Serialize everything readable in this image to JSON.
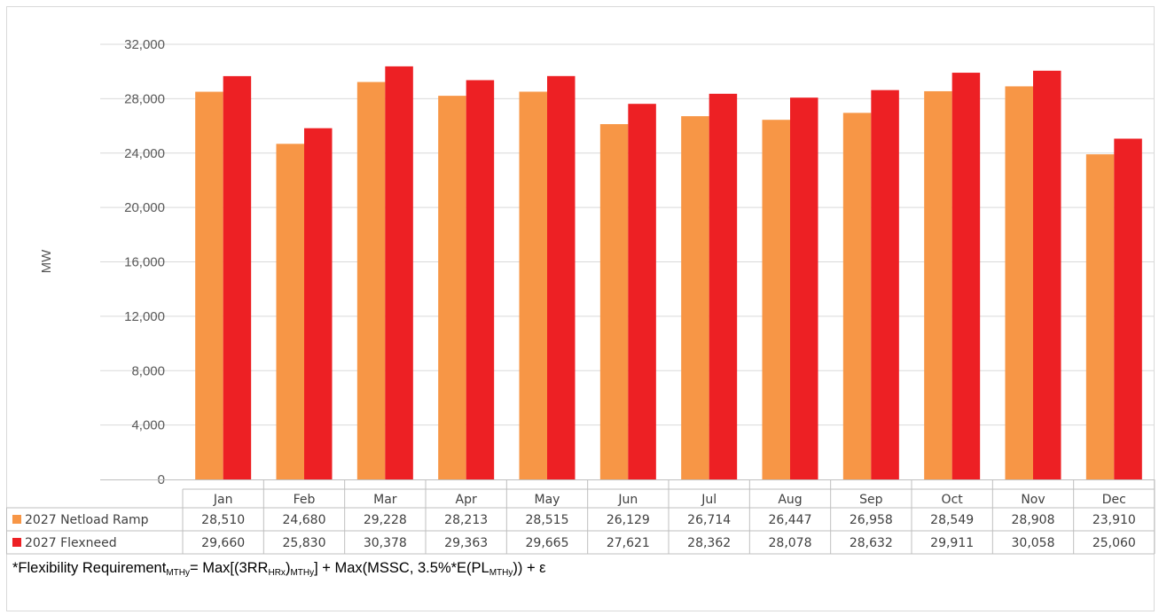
{
  "chart_data": {
    "type": "bar",
    "categories": [
      "Jan",
      "Feb",
      "Mar",
      "Apr",
      "May",
      "Jun",
      "Jul",
      "Aug",
      "Sep",
      "Oct",
      "Nov",
      "Dec"
    ],
    "series": [
      {
        "name": "2027 Netload Ramp",
        "color": "#f79646",
        "values": [
          28510,
          24680,
          29228,
          28213,
          28515,
          26129,
          26714,
          26447,
          26958,
          28549,
          28908,
          23910
        ],
        "display": [
          "28,510",
          "24,680",
          "29,228",
          "28,213",
          "28,515",
          "26,129",
          "26,714",
          "26,447",
          "26,958",
          "28,549",
          "28,908",
          "23,910"
        ]
      },
      {
        "name": "2027 Flexneed",
        "color": "#ed2024",
        "values": [
          29660,
          25830,
          30378,
          29363,
          29665,
          27621,
          28362,
          28078,
          28632,
          29911,
          30058,
          25060
        ],
        "display": [
          "29,660",
          "25,830",
          "30,378",
          "29,363",
          "29,665",
          "27,621",
          "28,362",
          "28,078",
          "28,632",
          "29,911",
          "30,058",
          "25,060"
        ]
      }
    ],
    "ylabel": "MW",
    "ylim": [
      0,
      32000
    ],
    "yticks": [
      0,
      4000,
      8000,
      12000,
      16000,
      20000,
      24000,
      28000,
      32000
    ],
    "ytick_labels": [
      "0",
      "4,000",
      "8,000",
      "12,000",
      "16,000",
      "20,000",
      "24,000",
      "28,000",
      "32,000"
    ],
    "grid": true,
    "legend": "data-table"
  },
  "footnote": {
    "part1": "*Flexibility Requirement",
    "sub1": "MTHy",
    "part2": "= Max[(3RR",
    "sub2": "HRx",
    "part3": ")",
    "sub3": "MTHy",
    "part4": "]  + Max(MSSC, 3.5%*E(PL",
    "sub4": "MTHy",
    "part5": ")) + ε"
  }
}
